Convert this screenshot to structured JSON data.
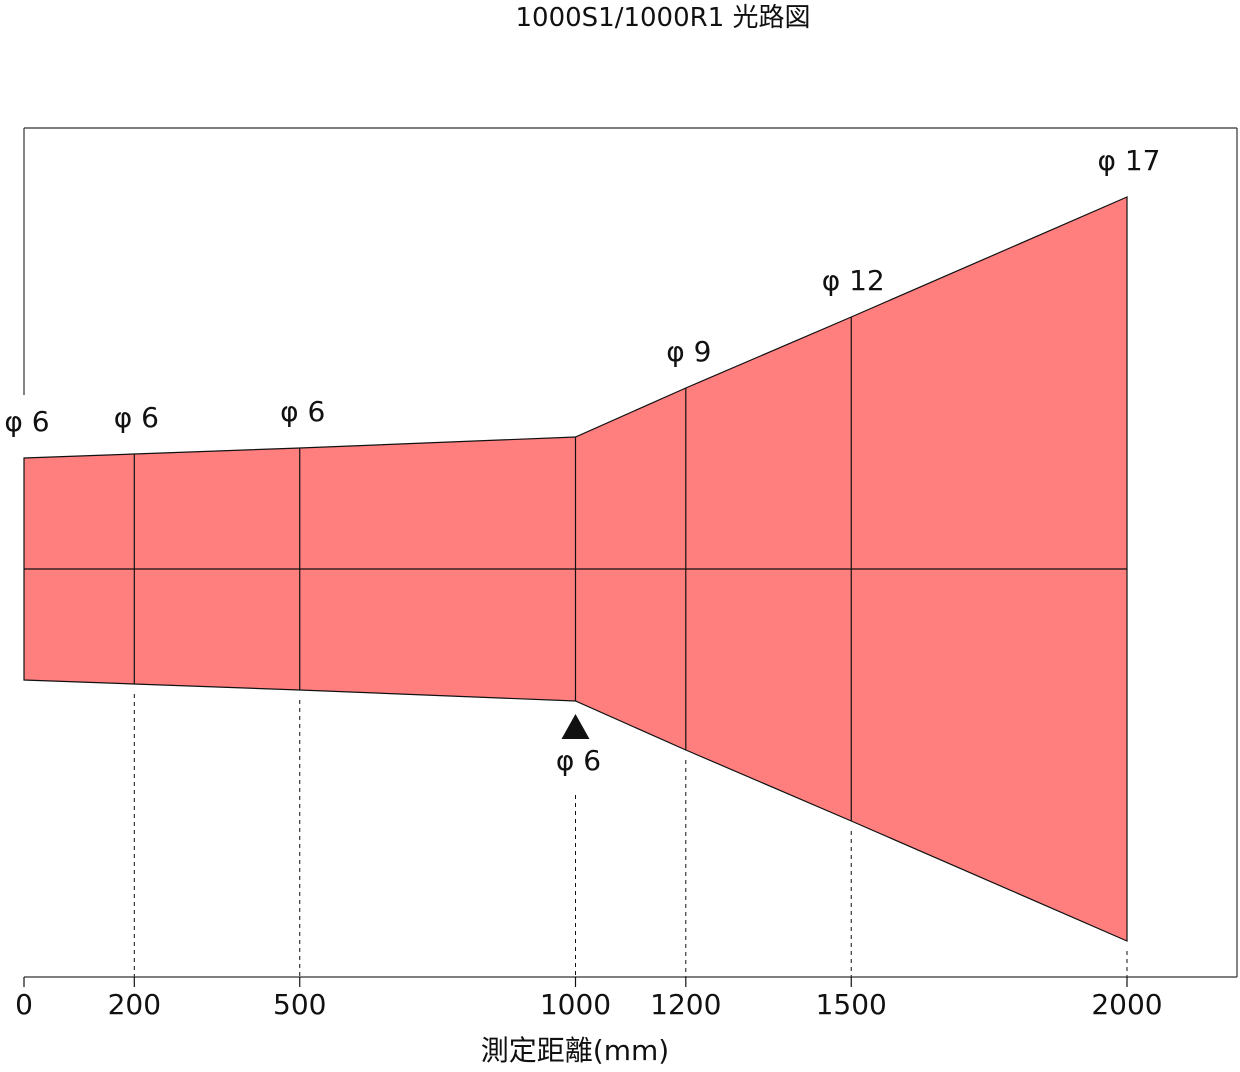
{
  "title": "1000S1/1000R1 光路図",
  "xlabel": "測定距離(mm)",
  "colors": {
    "beam": "#FF7F7F",
    "line": "#111111",
    "frame": "#333333"
  },
  "focal_marker": {
    "icon": "triangle-up-icon",
    "distance_mm": 1000,
    "label": "φ 6"
  },
  "chart_data": {
    "type": "area",
    "title": "1000S1/1000R1 光路図",
    "xlabel": "測定距離(mm)",
    "ylabel": "",
    "x_ticks": [
      0,
      200,
      500,
      1000,
      1200,
      1500,
      2000
    ],
    "x_tick_labels": [
      "0",
      "200",
      "500",
      "1000",
      "1200",
      "1500",
      "2000"
    ],
    "xlim": [
      0,
      2200
    ],
    "diameter_unit": "mm",
    "points": [
      {
        "distance": 0,
        "diameter": 6,
        "label": "φ 6"
      },
      {
        "distance": 200,
        "diameter": 6,
        "label": "φ 6"
      },
      {
        "distance": 500,
        "diameter": 6,
        "label": "φ 6"
      },
      {
        "distance": 1000,
        "diameter": 6,
        "label": "φ 6"
      },
      {
        "distance": 1200,
        "diameter": 9,
        "label": "φ 9"
      },
      {
        "distance": 1500,
        "diameter": 12,
        "label": "φ 12"
      },
      {
        "distance": 2000,
        "diameter": 17,
        "label": "φ 17"
      }
    ]
  }
}
